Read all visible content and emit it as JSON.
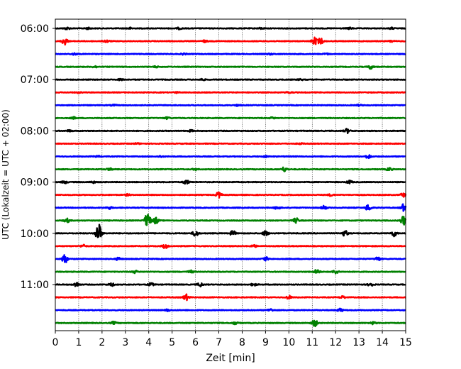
{
  "chart_data": {
    "type": "line",
    "title": "",
    "xlabel": "Zeit  [min]",
    "ylabel": "UTC (Lokalzeit = UTC + 02:00)",
    "xlim": [
      0,
      15
    ],
    "x_ticks": [
      "0",
      "1",
      "2",
      "3",
      "4",
      "5",
      "6",
      "7",
      "8",
      "9",
      "10",
      "11",
      "12",
      "13",
      "14",
      "15"
    ],
    "y_ticks": [
      "06:00",
      "07:00",
      "08:00",
      "09:00",
      "10:00",
      "11:00"
    ],
    "vertical_grid": true,
    "trace_colors": [
      "#000000",
      "#ff0000",
      "#0000ff",
      "#008000"
    ],
    "traces": [
      {
        "start": "06:00",
        "color": "#000000",
        "events": [
          [
            0.5,
            0.18
          ],
          [
            1.4,
            0.12
          ],
          [
            3.2,
            0.12
          ],
          [
            5.3,
            0.12
          ],
          [
            8.8,
            0.1
          ],
          [
            12.6,
            0.12
          ],
          [
            14.4,
            0.12
          ]
        ]
      },
      {
        "start": "06:15",
        "color": "#ff0000",
        "events": [
          [
            0.4,
            0.55
          ],
          [
            2.2,
            0.18
          ],
          [
            6.4,
            0.15
          ],
          [
            11.1,
            0.55
          ],
          [
            11.35,
            0.45
          ],
          [
            14.4,
            0.15
          ]
        ]
      },
      {
        "start": "06:30",
        "color": "#0000ff",
        "events": [
          [
            0.8,
            0.14
          ],
          [
            5.5,
            0.12
          ],
          [
            9.2,
            0.1
          ],
          [
            11.6,
            0.1
          ]
        ]
      },
      {
        "start": "06:45",
        "color": "#008000",
        "events": [
          [
            1.7,
            0.12
          ],
          [
            4.3,
            0.1
          ],
          [
            13.5,
            0.3
          ]
        ]
      },
      {
        "start": "07:00",
        "color": "#000000",
        "events": [
          [
            2.8,
            0.12
          ],
          [
            6.3,
            0.12
          ],
          [
            10.5,
            0.1
          ]
        ]
      },
      {
        "start": "07:15",
        "color": "#ff0000",
        "events": [
          [
            1.0,
            0.08
          ],
          [
            5.2,
            0.08
          ],
          [
            10.0,
            0.12
          ]
        ]
      },
      {
        "start": "07:30",
        "color": "#0000ff",
        "events": [
          [
            2.5,
            0.1
          ],
          [
            7.8,
            0.1
          ],
          [
            13.0,
            0.1
          ]
        ]
      },
      {
        "start": "07:45",
        "color": "#008000",
        "events": [
          [
            0.8,
            0.14
          ],
          [
            4.8,
            0.14
          ],
          [
            9.3,
            0.12
          ]
        ]
      },
      {
        "start": "08:00",
        "color": "#000000",
        "events": [
          [
            0.6,
            0.12
          ],
          [
            5.8,
            0.12
          ],
          [
            12.5,
            0.35
          ]
        ]
      },
      {
        "start": "08:15",
        "color": "#ff0000",
        "events": [
          [
            3.5,
            0.1
          ],
          [
            10.5,
            0.08
          ]
        ]
      },
      {
        "start": "08:30",
        "color": "#0000ff",
        "events": [
          [
            1.8,
            0.12
          ],
          [
            4.5,
            0.12
          ],
          [
            9.0,
            0.1
          ],
          [
            13.4,
            0.3
          ]
        ]
      },
      {
        "start": "08:45",
        "color": "#008000",
        "events": [
          [
            2.3,
            0.18
          ],
          [
            6.0,
            0.14
          ],
          [
            9.8,
            0.35
          ],
          [
            14.3,
            0.25
          ]
        ]
      },
      {
        "start": "09:00",
        "color": "#000000",
        "events": [
          [
            0.4,
            0.2
          ],
          [
            1.6,
            0.15
          ],
          [
            5.6,
            0.35
          ],
          [
            12.6,
            0.25
          ]
        ]
      },
      {
        "start": "09:15",
        "color": "#ff0000",
        "events": [
          [
            3.1,
            0.12
          ],
          [
            7.0,
            0.45
          ],
          [
            11.8,
            0.15
          ],
          [
            14.9,
            0.3
          ]
        ]
      },
      {
        "start": "09:30",
        "color": "#0000ff",
        "events": [
          [
            2.3,
            0.2
          ],
          [
            9.5,
            0.25
          ],
          [
            11.5,
            0.3
          ],
          [
            13.4,
            0.5
          ],
          [
            14.9,
            0.6
          ]
        ]
      },
      {
        "start": "09:45",
        "color": "#008000",
        "events": [
          [
            0.5,
            0.3
          ],
          [
            3.95,
            1.3
          ],
          [
            4.3,
            0.5
          ],
          [
            10.3,
            0.4
          ],
          [
            14.9,
            0.7
          ]
        ]
      },
      {
        "start": "10:00",
        "color": "#000000",
        "events": [
          [
            1.85,
            1.6
          ],
          [
            6.0,
            0.5
          ],
          [
            7.6,
            0.4
          ],
          [
            9.0,
            0.4
          ],
          [
            12.4,
            0.45
          ],
          [
            14.5,
            0.45
          ]
        ]
      },
      {
        "start": "10:15",
        "color": "#ff0000",
        "events": [
          [
            1.2,
            0.2
          ],
          [
            4.7,
            0.35
          ],
          [
            8.5,
            0.2
          ]
        ]
      },
      {
        "start": "10:30",
        "color": "#0000ff",
        "events": [
          [
            0.4,
            0.7
          ],
          [
            2.7,
            0.2
          ],
          [
            9.0,
            0.3
          ],
          [
            13.8,
            0.3
          ]
        ]
      },
      {
        "start": "10:45",
        "color": "#008000",
        "events": [
          [
            3.4,
            0.2
          ],
          [
            5.8,
            0.2
          ],
          [
            11.2,
            0.35
          ],
          [
            12.0,
            0.3
          ]
        ]
      },
      {
        "start": "11:00",
        "color": "#000000",
        "events": [
          [
            0.9,
            0.35
          ],
          [
            2.4,
            0.25
          ],
          [
            4.1,
            0.25
          ],
          [
            6.2,
            0.3
          ],
          [
            8.5,
            0.2
          ],
          [
            13.5,
            0.3
          ]
        ]
      },
      {
        "start": "11:15",
        "color": "#ff0000",
        "events": [
          [
            5.6,
            0.45
          ],
          [
            10.0,
            0.25
          ],
          [
            12.3,
            0.2
          ]
        ]
      },
      {
        "start": "11:30",
        "color": "#0000ff",
        "events": [
          [
            4.8,
            0.15
          ],
          [
            9.2,
            0.2
          ],
          [
            12.2,
            0.25
          ]
        ]
      },
      {
        "start": "11:45",
        "color": "#008000",
        "events": [
          [
            2.5,
            0.2
          ],
          [
            7.7,
            0.2
          ],
          [
            11.1,
            0.55
          ],
          [
            13.6,
            0.2
          ]
        ]
      }
    ]
  }
}
